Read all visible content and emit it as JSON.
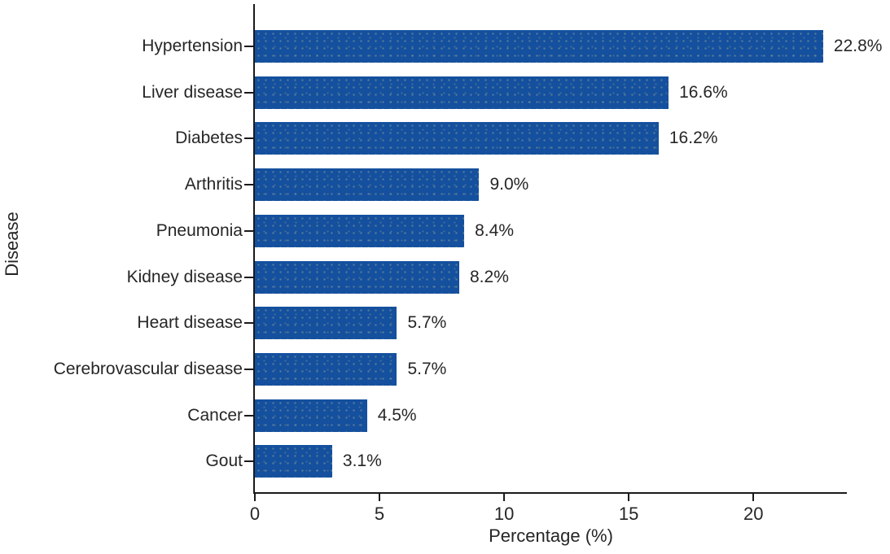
{
  "chart_data": {
    "type": "bar",
    "orientation": "horizontal",
    "title": "",
    "xlabel": "Percentage (%)",
    "ylabel": "Disease",
    "categories": [
      "Hypertension",
      "Liver disease",
      "Diabetes",
      "Arthritis",
      "Pneumonia",
      "Kidney disease",
      "Heart disease",
      "Cerebrovascular disease",
      "Cancer",
      "Gout"
    ],
    "values": [
      22.8,
      16.6,
      16.2,
      9.0,
      8.4,
      8.2,
      5.7,
      5.7,
      4.5,
      3.1
    ],
    "value_labels": [
      "22.8%",
      "16.6%",
      "16.2%",
      "9.0%",
      "8.4%",
      "8.2%",
      "5.7%",
      "5.7%",
      "4.5%",
      "3.1%"
    ],
    "x_ticks": [
      0,
      5,
      10,
      15,
      20
    ],
    "x_tick_labels": [
      "0",
      "5",
      "10",
      "15",
      "20"
    ],
    "xlim": [
      0,
      23.75
    ],
    "grid": false,
    "legend": null,
    "bar_color": "#14509e",
    "axis_color": "#1a1a1a",
    "text_color": "#262626"
  }
}
